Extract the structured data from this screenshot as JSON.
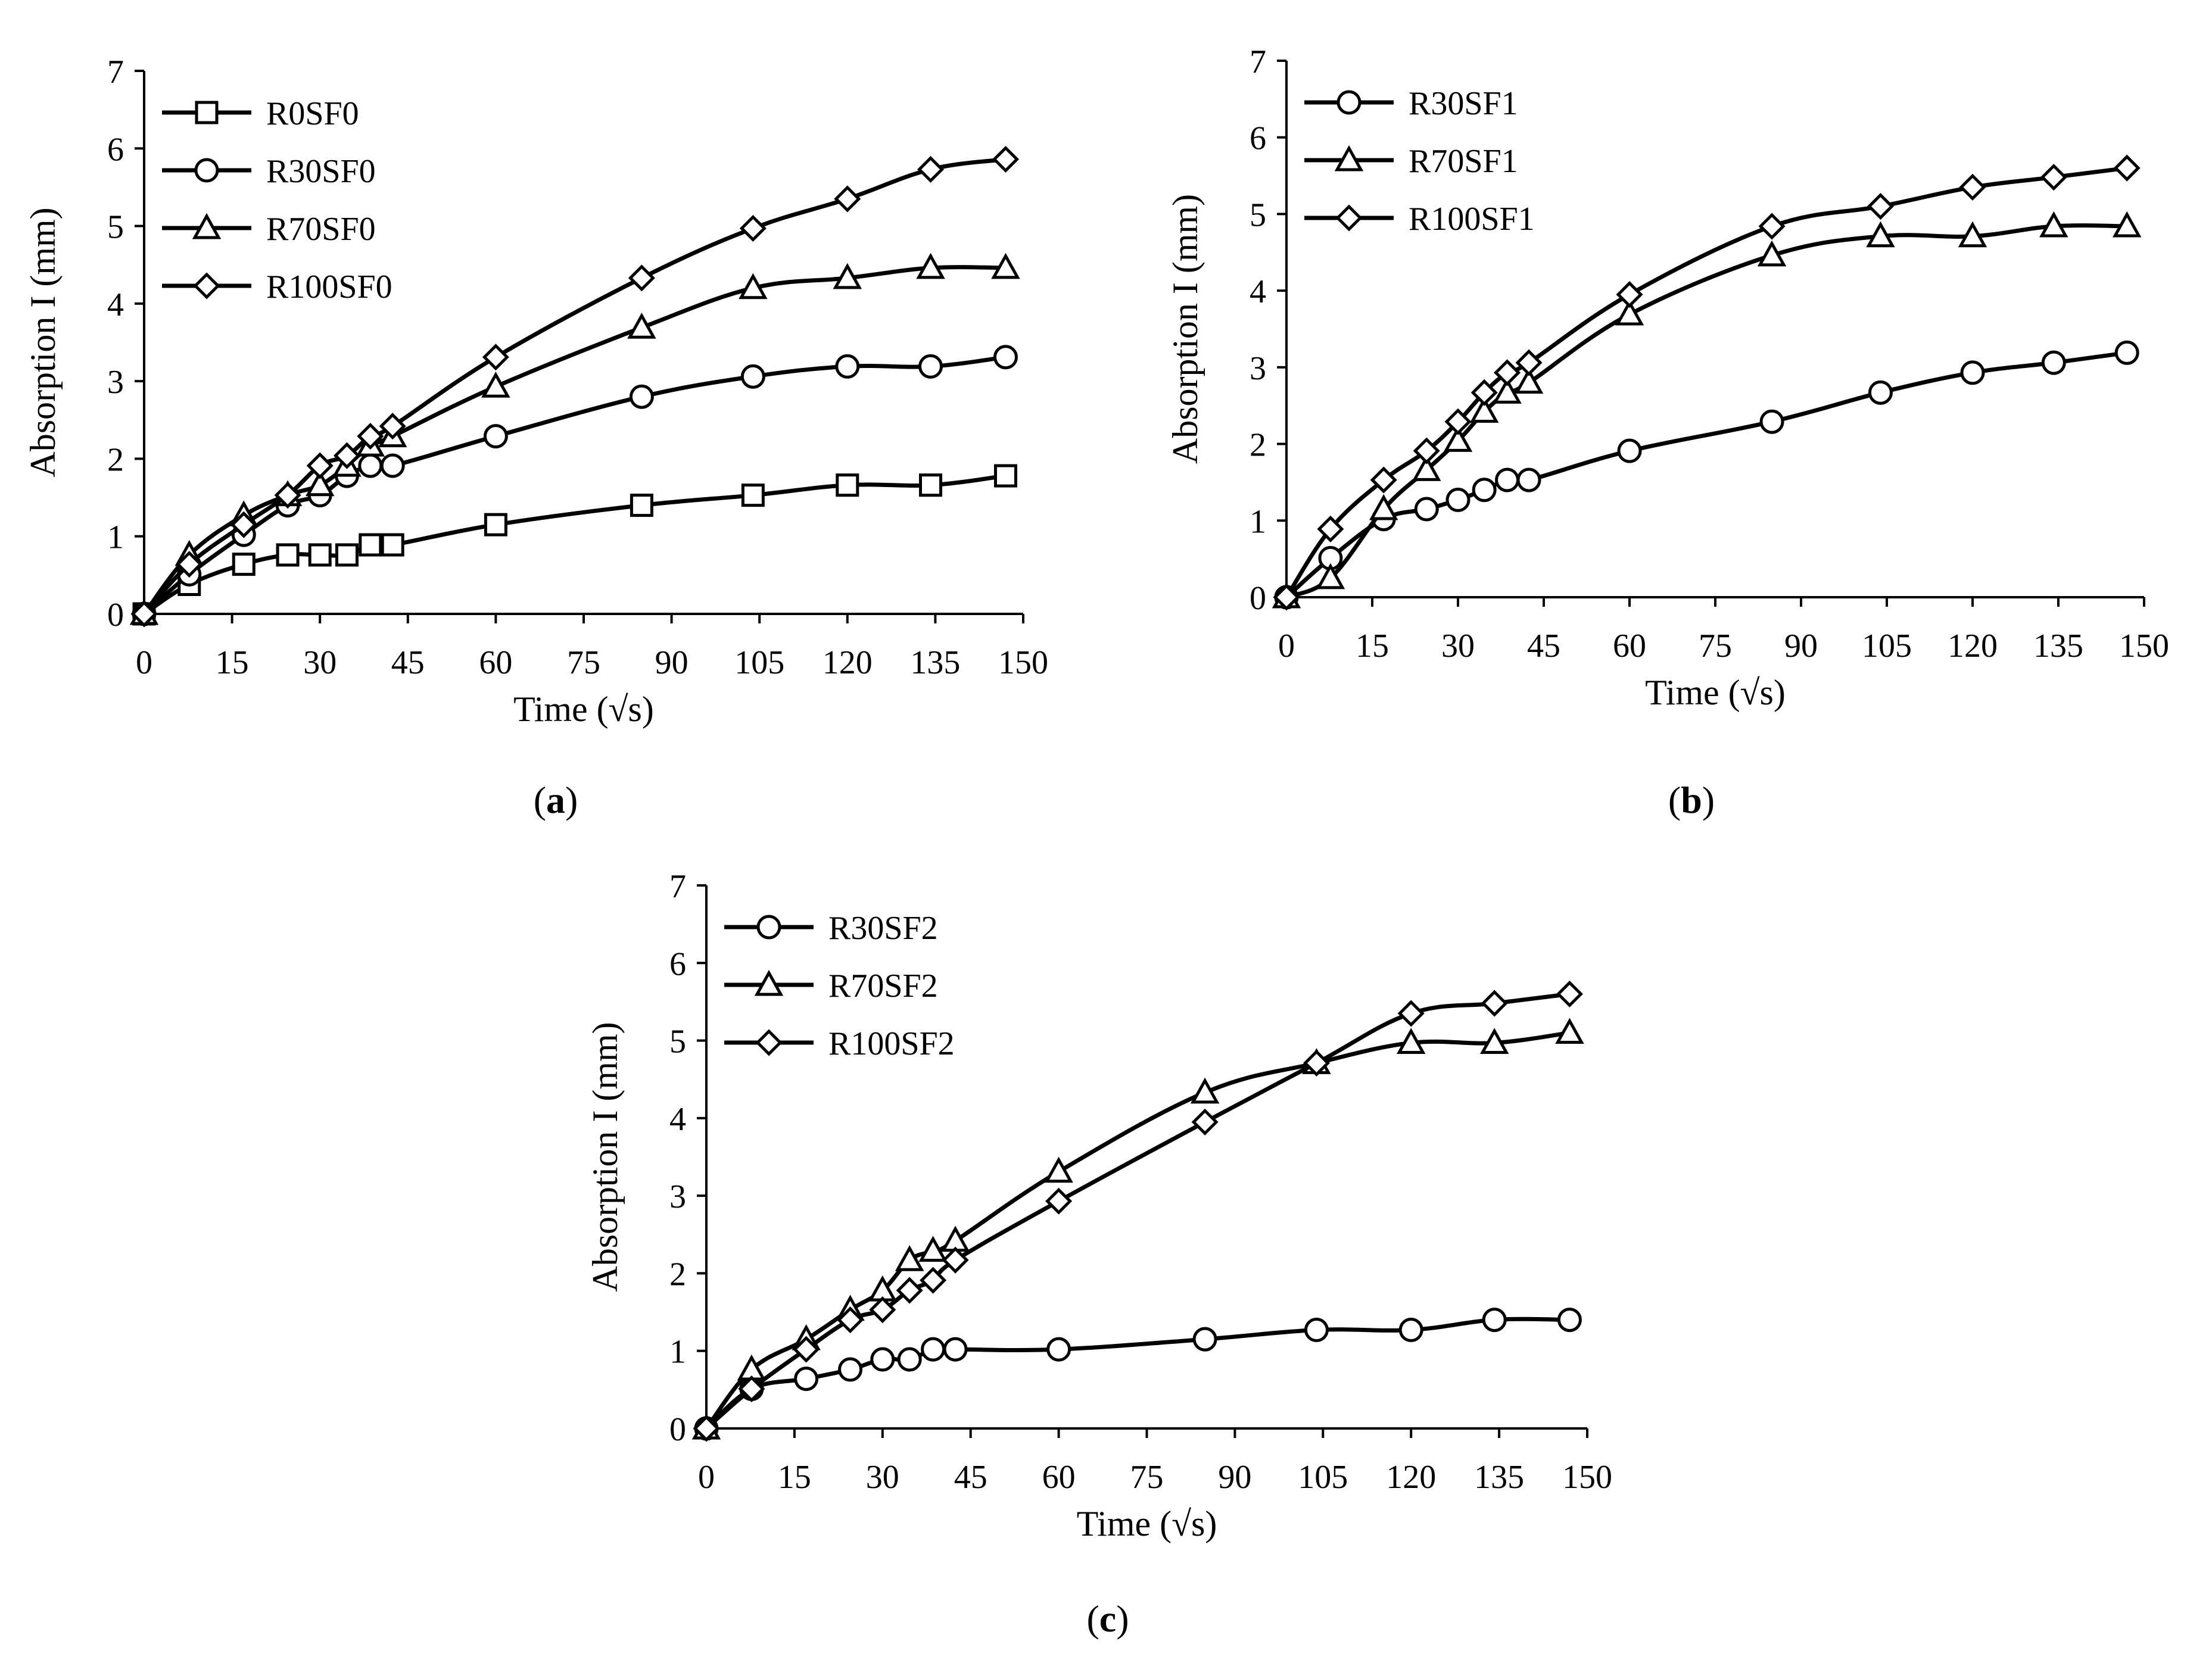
{
  "chart_data": [
    {
      "type": "line",
      "panel_label": "a",
      "xlabel": "Time (√s)",
      "ylabel": "Absorption I (mm)",
      "xlim": [
        0,
        150
      ],
      "ylim": [
        0,
        7
      ],
      "xticks": [
        0,
        15,
        30,
        45,
        60,
        75,
        90,
        105,
        120,
        135,
        150
      ],
      "yticks": [
        0,
        1,
        2,
        3,
        4,
        5,
        6,
        7
      ],
      "legend_position": "top-left",
      "x": [
        0,
        7.7,
        17,
        24.5,
        30,
        34.6,
        38.6,
        42.4,
        60,
        84.9,
        103.9,
        120,
        134.2,
        147
      ],
      "series": [
        {
          "name": "R0SF0",
          "marker": "square",
          "values": [
            0,
            0.38,
            0.64,
            0.76,
            0.76,
            0.76,
            0.89,
            0.89,
            1.15,
            1.4,
            1.53,
            1.66,
            1.66,
            1.78
          ]
        },
        {
          "name": "R30SF0",
          "marker": "circle",
          "values": [
            0,
            0.51,
            1.02,
            1.4,
            1.53,
            1.78,
            1.91,
            1.91,
            2.29,
            2.8,
            3.06,
            3.19,
            3.19,
            3.31
          ]
        },
        {
          "name": "R70SF0",
          "marker": "triangle",
          "values": [
            0,
            0.76,
            1.27,
            1.53,
            1.66,
            1.91,
            2.17,
            2.29,
            2.93,
            3.69,
            4.2,
            4.33,
            4.46,
            4.46
          ]
        },
        {
          "name": "R100SF0",
          "marker": "diamond",
          "values": [
            0,
            0.64,
            1.15,
            1.53,
            1.91,
            2.04,
            2.29,
            2.42,
            3.31,
            4.33,
            4.97,
            5.35,
            5.73,
            5.86
          ]
        }
      ]
    },
    {
      "type": "line",
      "panel_label": "b",
      "xlabel": "Time (√s)",
      "ylabel": "Absorption I (mm)",
      "xlim": [
        0,
        150
      ],
      "ylim": [
        0,
        7
      ],
      "xticks": [
        0,
        15,
        30,
        45,
        60,
        75,
        90,
        105,
        120,
        135,
        150
      ],
      "yticks": [
        0,
        1,
        2,
        3,
        4,
        5,
        6,
        7
      ],
      "legend_position": "top-left",
      "x": [
        0,
        7.7,
        17,
        24.5,
        30,
        34.6,
        38.6,
        42.4,
        60,
        84.9,
        103.9,
        120,
        134.2,
        147
      ],
      "series": [
        {
          "name": "R30SF1",
          "marker": "circle",
          "values": [
            0,
            0.51,
            1.02,
            1.15,
            1.27,
            1.4,
            1.53,
            1.53,
            1.91,
            2.29,
            2.67,
            2.93,
            3.06,
            3.19
          ]
        },
        {
          "name": "R70SF1",
          "marker": "triangle",
          "values": [
            0,
            0.25,
            1.15,
            1.66,
            2.04,
            2.42,
            2.67,
            2.8,
            3.69,
            4.46,
            4.71,
            4.71,
            4.84,
            4.84
          ]
        },
        {
          "name": "R100SF1",
          "marker": "diamond",
          "values": [
            0,
            0.89,
            1.53,
            1.91,
            2.29,
            2.67,
            2.93,
            3.06,
            3.95,
            4.84,
            5.1,
            5.35,
            5.48,
            5.6
          ]
        }
      ]
    },
    {
      "type": "line",
      "panel_label": "c",
      "xlabel": "Time (√s)",
      "ylabel": "Absorption I (mm)",
      "xlim": [
        0,
        150
      ],
      "ylim": [
        0,
        7
      ],
      "xticks": [
        0,
        15,
        30,
        45,
        60,
        75,
        90,
        105,
        120,
        135,
        150
      ],
      "yticks": [
        0,
        1,
        2,
        3,
        4,
        5,
        6,
        7
      ],
      "legend_position": "top-left",
      "x": [
        0,
        7.7,
        17,
        24.5,
        30,
        34.6,
        38.6,
        42.4,
        60,
        84.9,
        103.9,
        120,
        134.2,
        147
      ],
      "series": [
        {
          "name": "R30SF2",
          "marker": "circle",
          "values": [
            0,
            0.51,
            0.64,
            0.76,
            0.89,
            0.89,
            1.02,
            1.02,
            1.02,
            1.15,
            1.27,
            1.27,
            1.4,
            1.4
          ]
        },
        {
          "name": "R70SF2",
          "marker": "triangle",
          "values": [
            0,
            0.76,
            1.15,
            1.53,
            1.78,
            2.17,
            2.29,
            2.42,
            3.31,
            4.33,
            4.71,
            4.97,
            4.97,
            5.1
          ]
        },
        {
          "name": "R100SF2",
          "marker": "diamond",
          "values": [
            0,
            0.51,
            1.02,
            1.4,
            1.53,
            1.78,
            1.91,
            2.17,
            2.93,
            3.95,
            4.71,
            5.35,
            5.48,
            5.6
          ]
        }
      ]
    }
  ]
}
